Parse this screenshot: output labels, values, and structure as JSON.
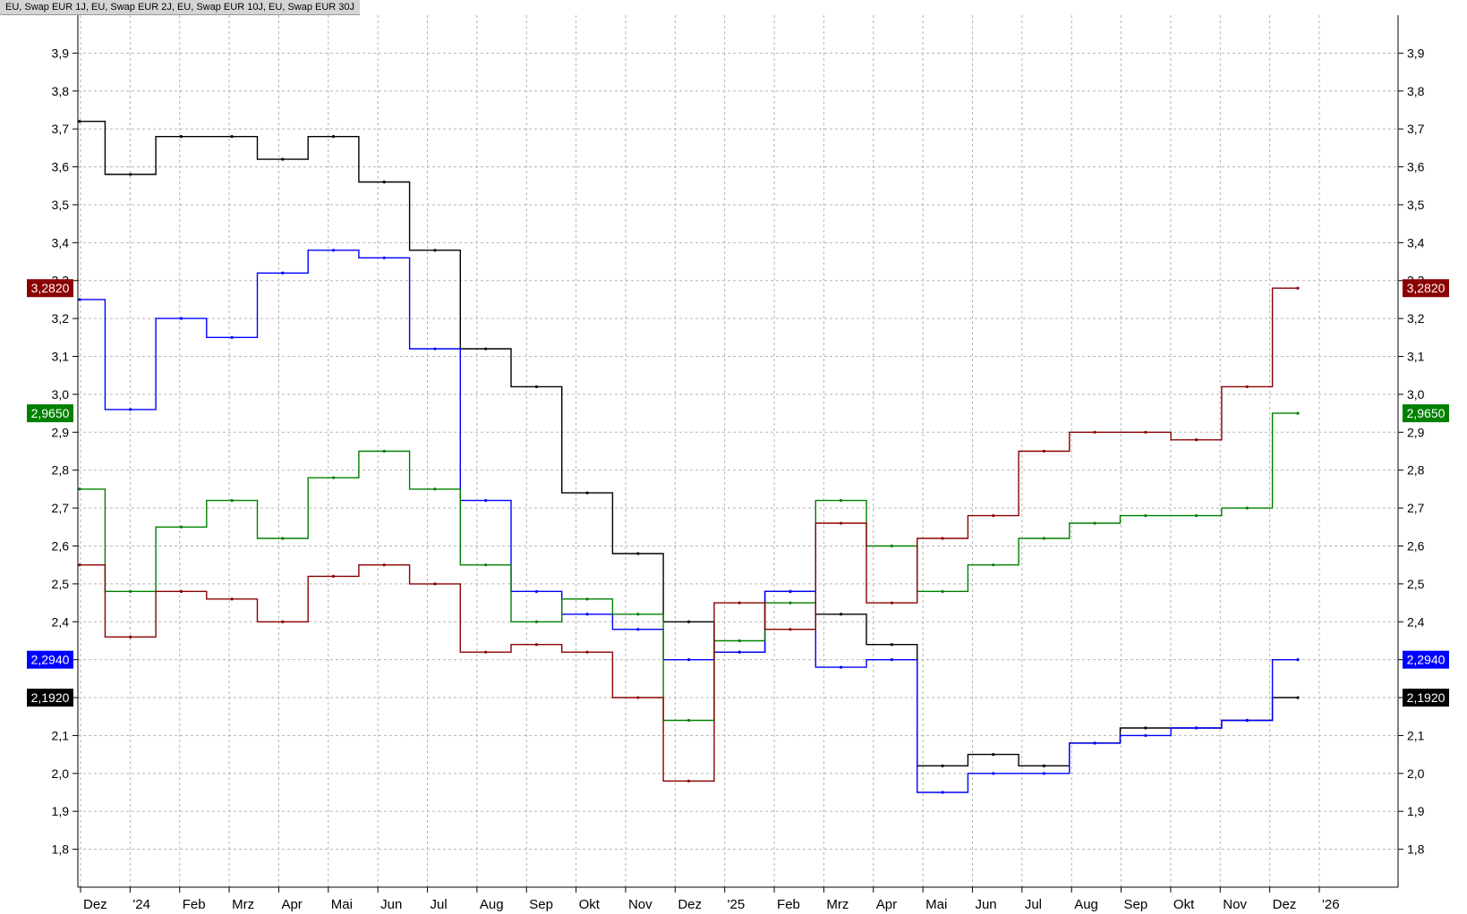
{
  "window": {
    "title": "EU, Swap EUR 1J, EU, Swap EUR 2J, EU, Swap EUR 10J, EU, Swap EUR 30J"
  },
  "chart_data": {
    "type": "line",
    "title": "",
    "xlabel": "",
    "ylabel": "",
    "ylim": [
      1.7,
      4.0
    ],
    "y_ticks": [
      1.8,
      1.9,
      2.0,
      2.1,
      2.2,
      2.3,
      2.4,
      2.5,
      2.6,
      2.7,
      2.8,
      2.9,
      3.0,
      3.1,
      3.2,
      3.3,
      3.4,
      3.5,
      3.6,
      3.7,
      3.8,
      3.9
    ],
    "y_tick_labels": [
      "1,8",
      "1,9",
      "2,0",
      "2,1",
      "2,2",
      "2,3",
      "2,4",
      "2,5",
      "2,6",
      "2,7",
      "2,8",
      "2,9",
      "3,0",
      "3,1",
      "3,2",
      "3,3",
      "3,4",
      "3,5",
      "3,6",
      "3,7",
      "3,8",
      "3,9"
    ],
    "x_tick_labels": [
      "Dez",
      "'24",
      "Feb",
      "Mrz",
      "Apr",
      "Mai",
      "Jun",
      "Jul",
      "Aug",
      "Sep",
      "Okt",
      "Nov",
      "Dez",
      "'25",
      "Feb",
      "Mrz",
      "Apr",
      "Mai",
      "Jun",
      "Jul",
      "Aug",
      "Sep",
      "Okt",
      "Nov",
      "Dez",
      "'26"
    ],
    "grid": true,
    "x": [
      "Dez 2023",
      "Jan 2024",
      "Feb 2024",
      "Mrz 2024",
      "Apr 2024",
      "Mai 2024",
      "Jun 2024",
      "Jul 2024",
      "Aug 2024",
      "Sep 2024",
      "Okt 2024",
      "Nov 2024",
      "Dez 2024",
      "Jan 2025",
      "Feb 2025",
      "Mrz 2025",
      "Apr 2025",
      "Mai 2025",
      "Jun 2025",
      "Jul 2025",
      "Aug 2025",
      "Sep 2025",
      "Okt 2025",
      "Nov 2025",
      "Dez 2025"
    ],
    "series": [
      {
        "color": "#000000",
        "last_label": "2,1920",
        "values": [
          3.72,
          3.58,
          3.68,
          3.68,
          3.62,
          3.68,
          3.56,
          3.38,
          3.12,
          3.02,
          2.74,
          2.58,
          2.4,
          2.32,
          2.48,
          2.42,
          2.34,
          2.02,
          2.05,
          2.02,
          2.08,
          2.12,
          2.12,
          2.14,
          2.2
        ]
      },
      {
        "color": "#0000ff",
        "last_label": "2,2940",
        "values": [
          3.25,
          2.96,
          3.2,
          3.15,
          3.32,
          3.38,
          3.36,
          3.12,
          2.72,
          2.48,
          2.42,
          2.38,
          2.3,
          2.32,
          2.48,
          2.28,
          2.3,
          1.95,
          2.0,
          2.0,
          2.08,
          2.1,
          2.12,
          2.14,
          2.3
        ]
      },
      {
        "color": "#008000",
        "last_label": "2,9650",
        "values": [
          2.75,
          2.48,
          2.65,
          2.72,
          2.62,
          2.78,
          2.85,
          2.75,
          2.55,
          2.4,
          2.46,
          2.42,
          2.14,
          2.35,
          2.45,
          2.72,
          2.6,
          2.48,
          2.55,
          2.62,
          2.66,
          2.68,
          2.68,
          2.7,
          2.95
        ]
      },
      {
        "color": "#8b0000",
        "last_label": "3,2820",
        "values": [
          2.55,
          2.36,
          2.48,
          2.46,
          2.4,
          2.52,
          2.55,
          2.5,
          2.32,
          2.34,
          2.32,
          2.2,
          1.98,
          2.45,
          2.38,
          2.66,
          2.45,
          2.62,
          2.68,
          2.85,
          2.9,
          2.9,
          2.88,
          3.02,
          3.28
        ]
      }
    ]
  }
}
